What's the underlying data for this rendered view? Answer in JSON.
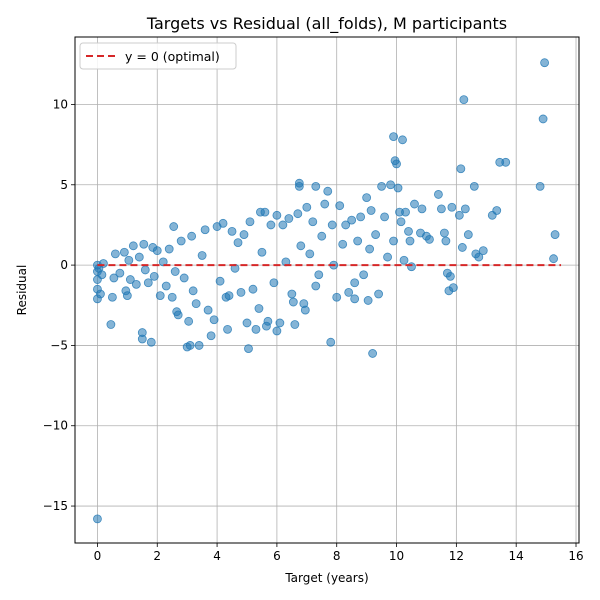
{
  "chart_data": {
    "type": "scatter",
    "title": "Targets vs Residual (all_folds), M participants",
    "xlabel": "Target (years)",
    "ylabel": "Residual",
    "xlim": [
      -0.75,
      16.1
    ],
    "ylim": [
      -17.3,
      14.2
    ],
    "xticks": [
      0,
      2,
      4,
      6,
      8,
      10,
      12,
      14,
      16
    ],
    "yticks": [
      -15,
      -10,
      -5,
      0,
      5,
      10
    ],
    "grid": true,
    "legend_position": "top-left",
    "reference_line": {
      "y": 0,
      "label": "y = 0 (optimal)",
      "color": "#d62728",
      "style": "dashed"
    },
    "series": [
      {
        "marker_color": "#1f77b4",
        "points": [
          [
            0.0,
            -15.8
          ],
          [
            0.0,
            -2.1
          ],
          [
            0.0,
            -1.5
          ],
          [
            0.0,
            -0.9
          ],
          [
            0.0,
            -0.4
          ],
          [
            0.0,
            0.0
          ],
          [
            0.05,
            -0.2
          ],
          [
            0.1,
            -1.8
          ],
          [
            0.15,
            -0.6
          ],
          [
            0.2,
            0.1
          ],
          [
            0.45,
            -3.7
          ],
          [
            0.5,
            -2.0
          ],
          [
            0.55,
            -0.8
          ],
          [
            0.6,
            0.7
          ],
          [
            0.75,
            -0.5
          ],
          [
            0.9,
            0.8
          ],
          [
            0.95,
            -1.6
          ],
          [
            1.0,
            -1.9
          ],
          [
            1.05,
            0.3
          ],
          [
            1.1,
            -0.9
          ],
          [
            1.2,
            1.2
          ],
          [
            1.3,
            -1.2
          ],
          [
            1.4,
            0.5
          ],
          [
            1.5,
            -4.2
          ],
          [
            1.5,
            -4.6
          ],
          [
            1.55,
            1.3
          ],
          [
            1.6,
            -0.3
          ],
          [
            1.7,
            -1.1
          ],
          [
            1.8,
            -4.8
          ],
          [
            1.85,
            1.1
          ],
          [
            1.9,
            -0.7
          ],
          [
            2.0,
            0.9
          ],
          [
            2.1,
            -1.9
          ],
          [
            2.2,
            0.2
          ],
          [
            2.3,
            -1.3
          ],
          [
            2.4,
            1.0
          ],
          [
            2.5,
            -2.0
          ],
          [
            2.55,
            2.4
          ],
          [
            2.6,
            -0.4
          ],
          [
            2.65,
            -2.9
          ],
          [
            2.7,
            -3.1
          ],
          [
            2.8,
            1.5
          ],
          [
            2.9,
            -0.8
          ],
          [
            3.0,
            -5.1
          ],
          [
            3.05,
            -3.5
          ],
          [
            3.1,
            -5.0
          ],
          [
            3.15,
            1.8
          ],
          [
            3.2,
            -1.6
          ],
          [
            3.3,
            -2.4
          ],
          [
            3.4,
            -5.0
          ],
          [
            3.5,
            0.6
          ],
          [
            3.6,
            2.2
          ],
          [
            3.7,
            -2.8
          ],
          [
            3.8,
            -4.4
          ],
          [
            3.9,
            -3.4
          ],
          [
            4.0,
            2.4
          ],
          [
            4.1,
            -1.0
          ],
          [
            4.2,
            2.6
          ],
          [
            4.3,
            -2.0
          ],
          [
            4.35,
            -4.0
          ],
          [
            4.4,
            -1.9
          ],
          [
            4.5,
            2.1
          ],
          [
            4.6,
            -0.2
          ],
          [
            4.7,
            1.4
          ],
          [
            4.8,
            -1.7
          ],
          [
            4.9,
            1.9
          ],
          [
            5.0,
            -3.6
          ],
          [
            5.05,
            -5.2
          ],
          [
            5.1,
            2.7
          ],
          [
            5.2,
            -1.5
          ],
          [
            5.3,
            -4.0
          ],
          [
            5.4,
            -2.7
          ],
          [
            5.45,
            3.3
          ],
          [
            5.5,
            0.8
          ],
          [
            5.6,
            3.3
          ],
          [
            5.65,
            -3.8
          ],
          [
            5.7,
            -3.5
          ],
          [
            5.8,
            2.5
          ],
          [
            5.9,
            -1.1
          ],
          [
            6.0,
            -4.1
          ],
          [
            6.0,
            3.1
          ],
          [
            6.1,
            -3.6
          ],
          [
            6.2,
            2.5
          ],
          [
            6.3,
            0.2
          ],
          [
            6.4,
            2.9
          ],
          [
            6.5,
            -1.8
          ],
          [
            6.55,
            -2.3
          ],
          [
            6.6,
            -3.7
          ],
          [
            6.7,
            3.2
          ],
          [
            6.75,
            5.1
          ],
          [
            6.75,
            4.9
          ],
          [
            6.8,
            1.2
          ],
          [
            6.9,
            -2.4
          ],
          [
            6.95,
            -2.8
          ],
          [
            7.0,
            3.6
          ],
          [
            7.1,
            0.7
          ],
          [
            7.2,
            2.7
          ],
          [
            7.3,
            4.9
          ],
          [
            7.3,
            -1.3
          ],
          [
            7.4,
            -0.6
          ],
          [
            7.5,
            1.8
          ],
          [
            7.6,
            3.8
          ],
          [
            7.7,
            4.6
          ],
          [
            7.8,
            -4.8
          ],
          [
            7.85,
            2.5
          ],
          [
            7.9,
            0.0
          ],
          [
            8.0,
            -2.0
          ],
          [
            8.1,
            3.7
          ],
          [
            8.2,
            1.3
          ],
          [
            8.3,
            2.5
          ],
          [
            8.4,
            -1.7
          ],
          [
            8.5,
            2.8
          ],
          [
            8.6,
            -1.1
          ],
          [
            8.6,
            -2.1
          ],
          [
            8.7,
            1.5
          ],
          [
            8.8,
            3.0
          ],
          [
            8.9,
            -0.6
          ],
          [
            9.0,
            4.2
          ],
          [
            9.05,
            -2.2
          ],
          [
            9.1,
            1.0
          ],
          [
            9.15,
            3.4
          ],
          [
            9.2,
            -5.5
          ],
          [
            9.3,
            1.9
          ],
          [
            9.4,
            -1.8
          ],
          [
            9.5,
            4.9
          ],
          [
            9.6,
            3.0
          ],
          [
            9.7,
            0.5
          ],
          [
            9.8,
            5.0
          ],
          [
            9.9,
            1.5
          ],
          [
            9.9,
            8.0
          ],
          [
            9.95,
            6.5
          ],
          [
            10.0,
            6.3
          ],
          [
            10.05,
            4.8
          ],
          [
            10.1,
            3.3
          ],
          [
            10.15,
            2.7
          ],
          [
            10.2,
            7.8
          ],
          [
            10.25,
            0.3
          ],
          [
            10.3,
            3.3
          ],
          [
            10.4,
            2.1
          ],
          [
            10.45,
            1.5
          ],
          [
            10.5,
            -0.1
          ],
          [
            10.6,
            3.8
          ],
          [
            10.8,
            2.0
          ],
          [
            10.85,
            3.5
          ],
          [
            11.0,
            1.8
          ],
          [
            11.1,
            1.6
          ],
          [
            11.4,
            4.4
          ],
          [
            11.5,
            3.5
          ],
          [
            11.6,
            2.0
          ],
          [
            11.65,
            1.5
          ],
          [
            11.7,
            -0.5
          ],
          [
            11.75,
            -1.6
          ],
          [
            11.8,
            -0.7
          ],
          [
            11.85,
            3.6
          ],
          [
            11.9,
            -1.4
          ],
          [
            12.1,
            3.1
          ],
          [
            12.15,
            6.0
          ],
          [
            12.2,
            1.1
          ],
          [
            12.25,
            10.3
          ],
          [
            12.3,
            3.5
          ],
          [
            12.4,
            1.9
          ],
          [
            12.6,
            4.9
          ],
          [
            12.65,
            0.7
          ],
          [
            12.75,
            0.5
          ],
          [
            12.9,
            0.9
          ],
          [
            13.2,
            3.1
          ],
          [
            13.35,
            3.4
          ],
          [
            13.45,
            6.4
          ],
          [
            13.65,
            6.4
          ],
          [
            14.8,
            4.9
          ],
          [
            14.9,
            9.1
          ],
          [
            14.95,
            12.6
          ],
          [
            15.25,
            0.4
          ],
          [
            15.3,
            1.9
          ]
        ]
      }
    ]
  }
}
